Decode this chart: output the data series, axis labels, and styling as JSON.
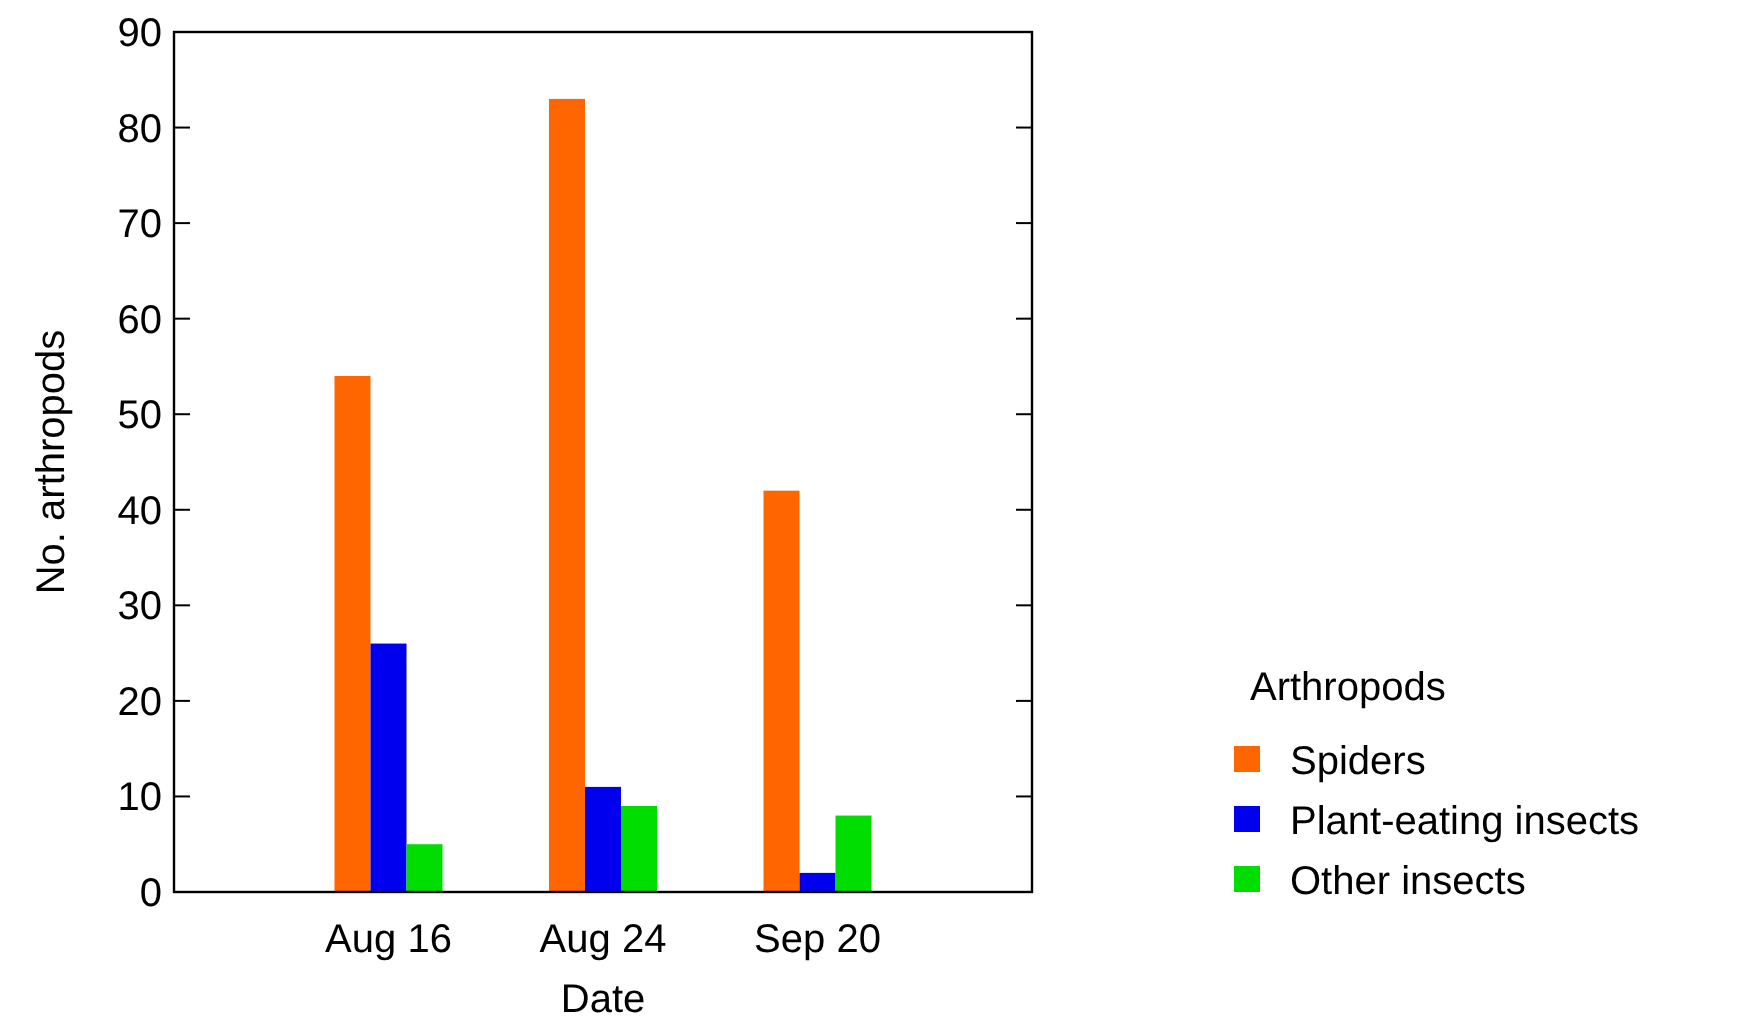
{
  "chart_data": {
    "type": "bar",
    "xlabel": "Date",
    "ylabel": "No. arthropods",
    "legend_title": "Arthropods",
    "categories": [
      "Aug 16",
      "Aug 24",
      "Sep 20"
    ],
    "series": [
      {
        "name": "Spiders",
        "color": "#ff6600",
        "values": [
          54,
          83,
          42
        ]
      },
      {
        "name": "Plant-eating insects",
        "color": "#0000ee",
        "values": [
          26,
          11,
          2
        ]
      },
      {
        "name": "Other insects",
        "color": "#00dd00",
        "values": [
          5,
          9,
          8
        ]
      }
    ],
    "ylim": [
      0,
      90
    ],
    "yticks": [
      0,
      10,
      20,
      30,
      40,
      50,
      60,
      70,
      80,
      90
    ],
    "grid": false,
    "legend": "right"
  }
}
